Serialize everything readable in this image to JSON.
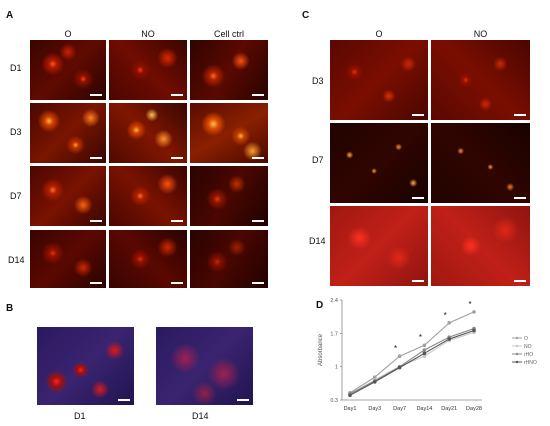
{
  "panelA": {
    "letter": "A",
    "columns": [
      "O",
      "NO",
      "Cell ctrl"
    ],
    "rows": [
      "D1",
      "D3",
      "D7",
      "D14"
    ]
  },
  "panelB": {
    "letter": "B",
    "labels": [
      "D1",
      "D14"
    ]
  },
  "panelC": {
    "letter": "C",
    "columns": [
      "O",
      "NO"
    ],
    "rows": [
      "D3",
      "D7",
      "D14"
    ]
  },
  "panelD": {
    "letter": "D"
  },
  "chart_data": {
    "type": "line",
    "title": "",
    "xlabel": "",
    "ylabel": "Absorbance",
    "categories": [
      "Day1",
      "Day3",
      "Day7",
      "Day14",
      "Day21",
      "Day28"
    ],
    "ylim": [
      0.3,
      2.4
    ],
    "yticks": [
      "0.3",
      "1",
      "1.7",
      "2.4"
    ],
    "series": [
      {
        "name": "O",
        "values": [
          0.45,
          0.78,
          1.22,
          1.45,
          1.92,
          2.15
        ],
        "color": "#a0a0a0"
      },
      {
        "name": "NO",
        "values": [
          0.42,
          0.72,
          1.0,
          1.22,
          1.55,
          1.72
        ],
        "color": "#c8c8c8"
      },
      {
        "name": "rHO",
        "values": [
          0.43,
          0.7,
          1.0,
          1.35,
          1.62,
          1.8
        ],
        "color": "#8a8a8a"
      },
      {
        "name": "rHNO",
        "values": [
          0.4,
          0.68,
          0.98,
          1.28,
          1.58,
          1.76
        ],
        "color": "#555555"
      }
    ],
    "annotations": [
      "*",
      "*",
      "*",
      "*"
    ],
    "annotation_categories": [
      "Day7",
      "Day14",
      "Day21",
      "Day28"
    ],
    "legend_position": "right",
    "grid": false
  }
}
